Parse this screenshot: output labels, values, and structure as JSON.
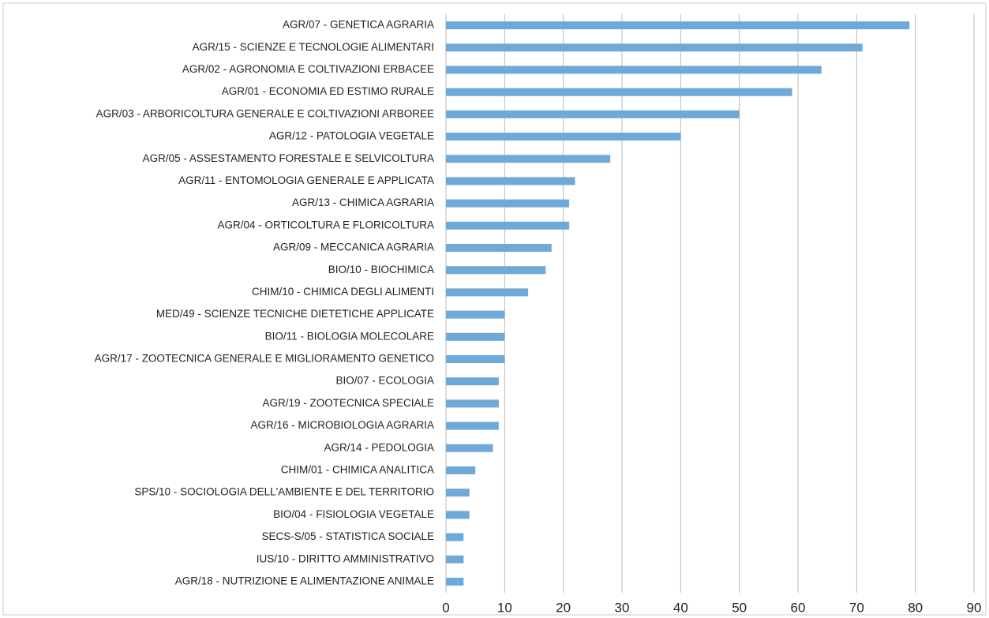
{
  "chart_data": {
    "type": "barh",
    "categories": [
      "AGR/07 - GENETICA AGRARIA",
      "AGR/15 - SCIENZE E TECNOLOGIE ALIMENTARI",
      "AGR/02 - AGRONOMIA E COLTIVAZIONI ERBACEE",
      "AGR/01 - ECONOMIA ED ESTIMO RURALE",
      "AGR/03 - ARBORICOLTURA GENERALE E COLTIVAZIONI ARBOREE",
      "AGR/12 - PATOLOGIA VEGETALE",
      "AGR/05 - ASSESTAMENTO FORESTALE E SELVICOLTURA",
      "AGR/11 - ENTOMOLOGIA GENERALE E APPLICATA",
      "AGR/13 - CHIMICA AGRARIA",
      "AGR/04 - ORTICOLTURA E FLORICOLTURA",
      "AGR/09 - MECCANICA AGRARIA",
      "BIO/10 - BIOCHIMICA",
      "CHIM/10 - CHIMICA DEGLI ALIMENTI",
      "MED/49 - SCIENZE TECNICHE DIETETICHE APPLICATE",
      "BIO/11 - BIOLOGIA MOLECOLARE",
      "AGR/17 - ZOOTECNICA GENERALE E MIGLIORAMENTO GENETICO",
      "BIO/07 - ECOLOGIA",
      "AGR/19 - ZOOTECNICA SPECIALE",
      "AGR/16 - MICROBIOLOGIA AGRARIA",
      "AGR/14 - PEDOLOGIA",
      "CHIM/01 - CHIMICA ANALITICA",
      "SPS/10 - SOCIOLOGIA DELL'AMBIENTE E DEL TERRITORIO",
      "BIO/04 - FISIOLOGIA VEGETALE",
      "SECS-S/05 - STATISTICA SOCIALE",
      "IUS/10 - DIRITTO AMMINISTRATIVO",
      "AGR/18 - NUTRIZIONE E ALIMENTAZIONE ANIMALE"
    ],
    "values": [
      79,
      71,
      64,
      59,
      50,
      40,
      28,
      22,
      21,
      21,
      18,
      17,
      14,
      10,
      10,
      10,
      9,
      9,
      9,
      8,
      5,
      4,
      4,
      3,
      3,
      3
    ],
    "color": "#6fa9d8",
    "xlim": [
      0,
      90
    ],
    "xticks": [
      0,
      10,
      20,
      30,
      40,
      50,
      60,
      70,
      80,
      90
    ],
    "grid": true
  }
}
